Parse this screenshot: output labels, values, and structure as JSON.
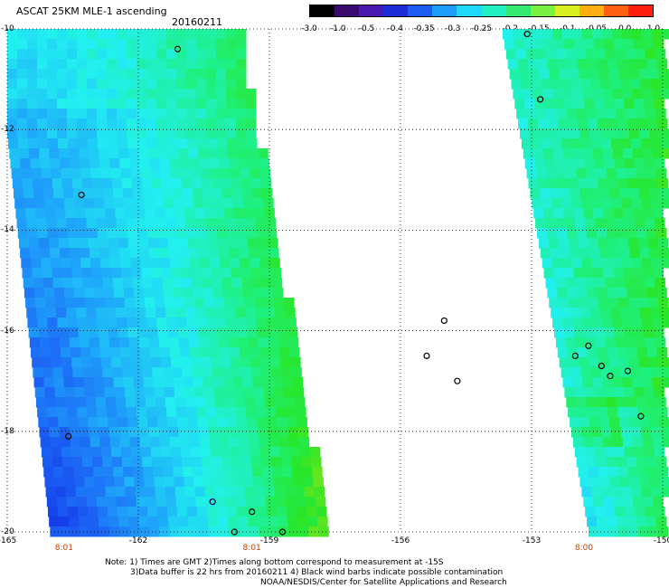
{
  "header": {
    "title": "ASCAT 25KM MLE-1 ascending",
    "date": "20160211"
  },
  "colorbar": {
    "labels": [
      "-3.0",
      "-1.0",
      "-0.5",
      "-0.4",
      "-0.35",
      "-0.3",
      "-0.25",
      "-0.2",
      "-0.15",
      "-0.1",
      "-0.05",
      "0.0",
      "1.0"
    ],
    "colors": [
      "#000000",
      "#3a0a6e",
      "#4a1ab0",
      "#1c2cd6",
      "#1c5cf0",
      "#1e9cfa",
      "#20d8f8",
      "#22f0c0",
      "#34e870",
      "#7cf040",
      "#d8f020",
      "#ffb010",
      "#ff6010",
      "#ff2010"
    ]
  },
  "map": {
    "lon_ticks": [
      "-165",
      "-162",
      "-159",
      "-156",
      "-153",
      "-150"
    ],
    "lat_ticks": [
      "-10",
      "-12",
      "-14",
      "-16",
      "-18",
      "-20"
    ],
    "time_labels": [
      {
        "lon": -163.7,
        "text": "8:01"
      },
      {
        "lon": -159.4,
        "text": "8:01"
      },
      {
        "lon": -151.8,
        "text": "8:00"
      }
    ]
  },
  "notes": {
    "line1": "Note: 1) Times are GMT 2)Times along bottom correspond to measurement at -15S",
    "line2": "3)Data buffer is 22 hrs from 20160211 4) Black wind barbs indicate possible contamination",
    "line3": "NOAA/NESDIS/Center for Satellite Applications and Research"
  }
}
